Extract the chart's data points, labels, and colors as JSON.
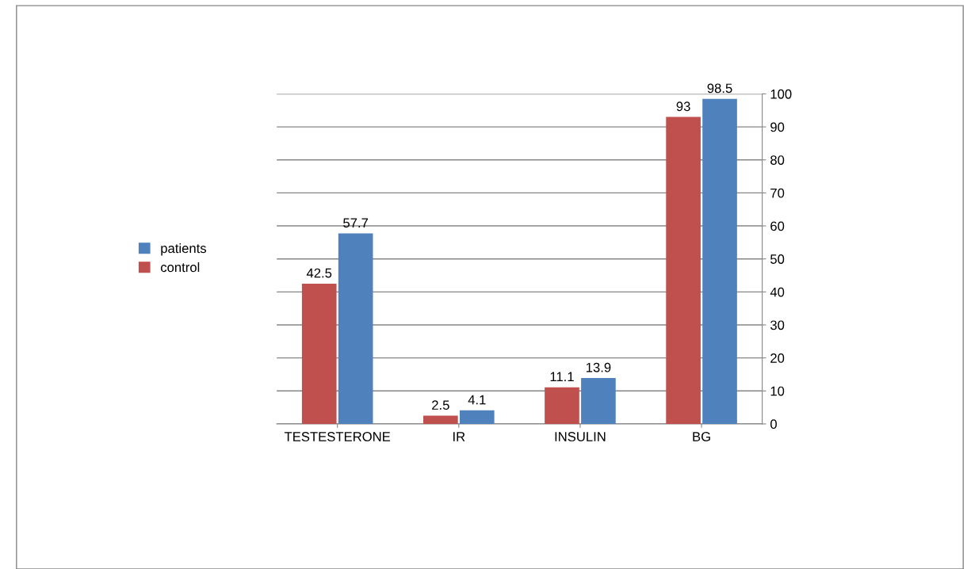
{
  "chart_data": {
    "type": "bar",
    "categories": [
      "TESTESTERONE",
      "IR",
      "INSULIN",
      "BG"
    ],
    "series": [
      {
        "name": "control",
        "color": "#c0504d",
        "values": [
          42.5,
          2.5,
          11.1,
          93
        ]
      },
      {
        "name": "patients",
        "color": "#4f81bd",
        "values": [
          57.7,
          4.1,
          13.9,
          98.5
        ]
      }
    ],
    "ylim": [
      0,
      100
    ],
    "yticks": [
      0,
      10,
      20,
      30,
      40,
      50,
      60,
      70,
      80,
      90,
      100
    ],
    "grid": "y",
    "legend": "left",
    "data_labels": true
  }
}
